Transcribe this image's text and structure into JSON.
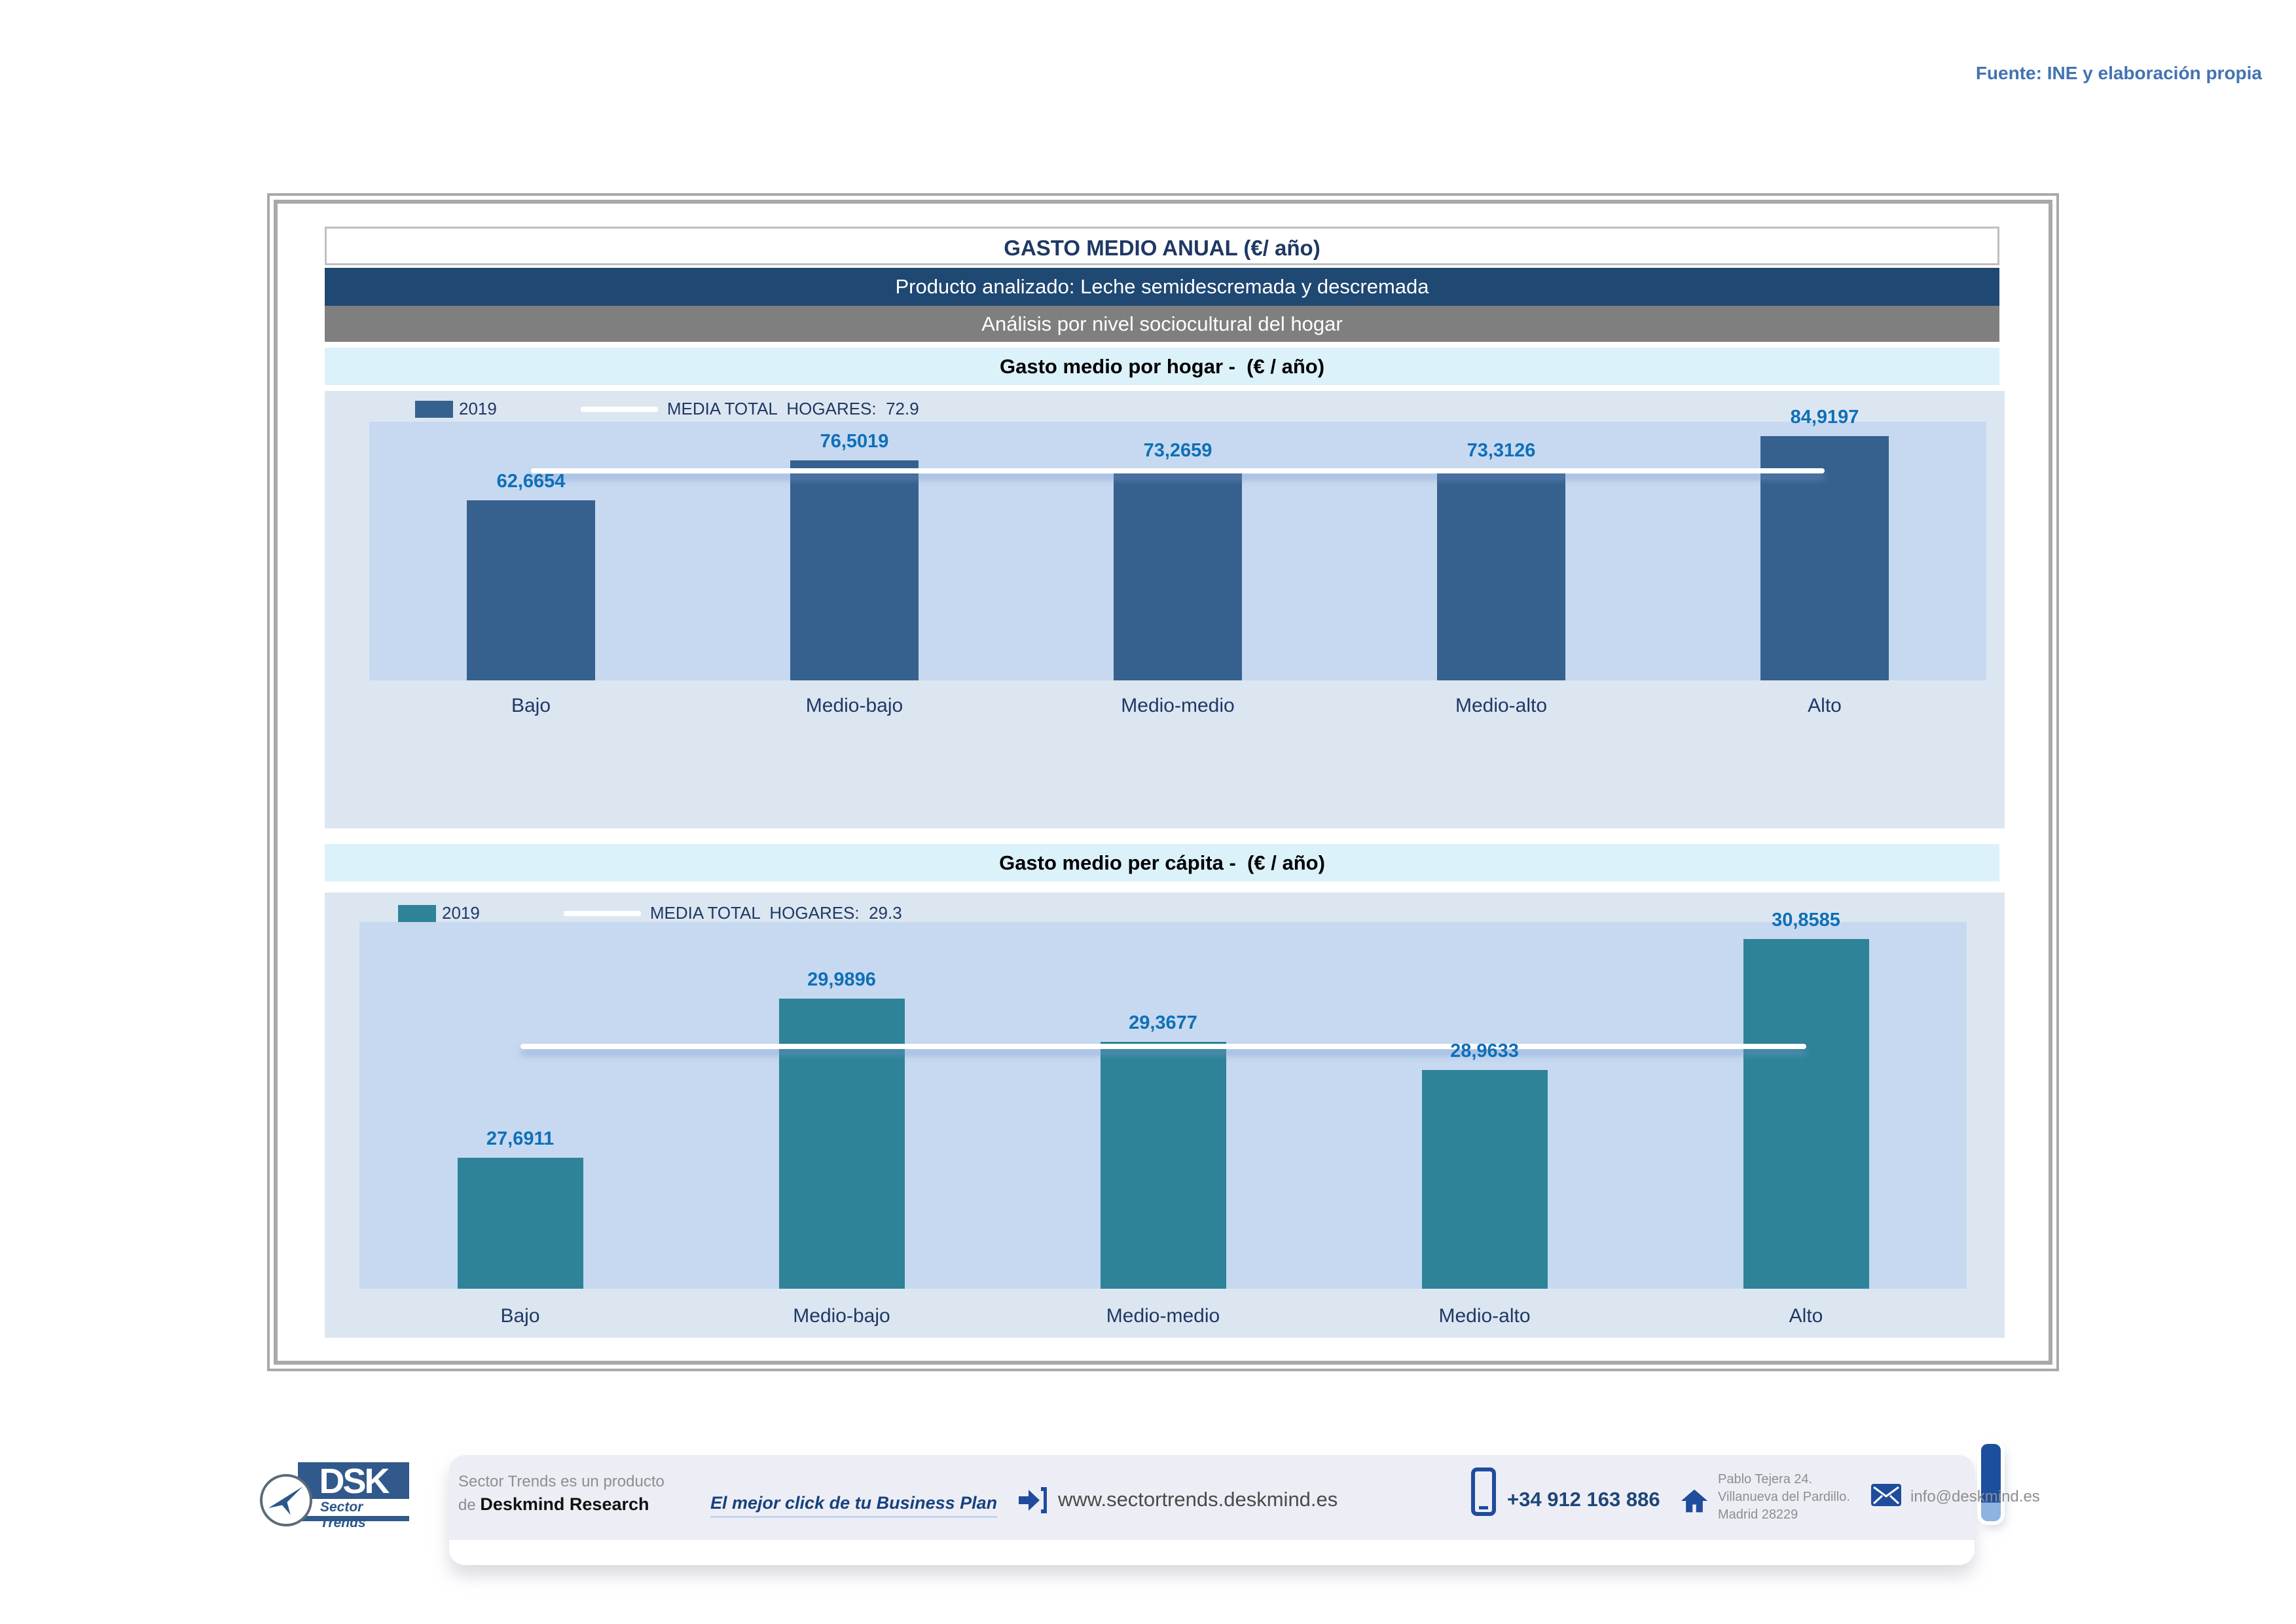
{
  "source_note": "Fuente: INE y elaboración propia",
  "report": {
    "title": "GASTO MEDIO ANUAL (€/ año)",
    "product_line": "Producto analizado: Leche semidescremada y descremada",
    "analysis_line": "Análisis por nivel sociocultural del hogar"
  },
  "chart_data": [
    {
      "type": "bar",
      "title": "Gasto medio por hogar -  (€ / año)",
      "categories": [
        "Bajo",
        "Medio-bajo",
        "Medio-medio",
        "Medio-alto",
        "Alto"
      ],
      "values": [
        62.6654,
        76.5019,
        73.2659,
        73.3126,
        84.9197
      ],
      "value_labels": [
        "62,6654",
        "76,5019",
        "73,2659",
        "73,3126",
        "84,9197"
      ],
      "mean_total": 72.9,
      "ylim": [
        0,
        90
      ],
      "grid": false,
      "legend_position": "top-left",
      "legend": {
        "series": "2019",
        "media_text": "MEDIA TOTAL  HOGARES:  72.9"
      },
      "bar_color": "#36618F",
      "mean_line_color": "#FFFFFF"
    },
    {
      "type": "bar",
      "title": "Gasto medio per cápita -  (€ / año)",
      "categories": [
        "Bajo",
        "Medio-bajo",
        "Medio-medio",
        "Medio-alto",
        "Alto"
      ],
      "values": [
        27.6911,
        29.9896,
        29.3677,
        28.9633,
        30.8585
      ],
      "value_labels": [
        "27,6911",
        "29,9896",
        "29,3677",
        "28,9633",
        "30,8585"
      ],
      "mean_total": 29.3,
      "ylim": [
        25.8,
        31.1
      ],
      "grid": false,
      "legend_position": "top-left",
      "legend": {
        "series": "2019",
        "media_text": "MEDIA TOTAL  HOGARES:  29.3"
      },
      "bar_color": "#2E8399",
      "mean_line_color": "#FFFFFF"
    }
  ],
  "footer": {
    "logo": {
      "dsk": "DSK",
      "brand": "Sector Trends"
    },
    "producer_line1": "Sector Trends es un producto",
    "producer_line2_prefix": "de ",
    "producer_line2_bold": "Deskmind Research",
    "tagline": "El mejor click de tu Business Plan",
    "website": "www.sectortrends.deskmind.es",
    "phone": "+34 912 163 886",
    "address_line1": "Pablo Tejera 24.",
    "address_line2": "Villanueva del Pardillo.",
    "address_line3": "Madrid 28229",
    "email": "info@deskmind.es"
  },
  "colors": {
    "band_blue": "#1F4873",
    "band_gray": "#7F7F7F",
    "band_cyan": "#DBF2FA",
    "chart_outer_bg": "#DCE6F1",
    "plot_bg": "#C6D9F0",
    "bar_household": "#36618F",
    "bar_capita": "#2E8399",
    "value_label_blue": "#0F6FB8",
    "navy_text": "#1F3864",
    "mean_line": "#FFFFFF"
  }
}
